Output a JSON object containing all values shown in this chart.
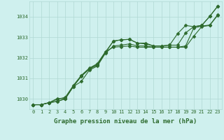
{
  "background_color": "#cff0ee",
  "plot_bg_color": "#cff0ee",
  "grid_color": "#b0d8d4",
  "line_color": "#2d6a2d",
  "marker_color": "#2d6a2d",
  "xlabel": "Graphe pression niveau de la mer (hPa)",
  "xlim": [
    -0.5,
    23.5
  ],
  "ylim": [
    1029.5,
    1034.75
  ],
  "yticks": [
    1030,
    1031,
    1032,
    1033,
    1034
  ],
  "xticks": [
    0,
    1,
    2,
    3,
    4,
    5,
    6,
    7,
    8,
    9,
    10,
    11,
    12,
    13,
    14,
    15,
    16,
    17,
    18,
    19,
    20,
    21,
    22,
    23
  ],
  "series": [
    [
      1029.72,
      1029.72,
      1029.82,
      1029.88,
      1030.0,
      1030.6,
      1031.1,
      1031.45,
      1031.65,
      1032.25,
      1032.82,
      1032.88,
      1032.9,
      1032.72,
      1032.72,
      1032.58,
      1032.58,
      1032.62,
      1032.62,
      1033.22,
      1033.52,
      1033.58,
      1034.02,
      1034.52
    ],
    [
      1029.72,
      1029.72,
      1029.82,
      1030.02,
      1030.02,
      1030.62,
      1031.12,
      1031.48,
      1031.68,
      1032.28,
      1032.82,
      1032.88,
      1032.9,
      1032.72,
      1032.68,
      1032.58,
      1032.58,
      1032.62,
      1033.18,
      1033.58,
      1033.52,
      1033.58,
      1034.02,
      1034.52
    ],
    [
      1029.72,
      1029.72,
      1029.82,
      1029.98,
      1030.08,
      1030.65,
      1031.15,
      1031.5,
      1031.72,
      1032.3,
      1032.52,
      1032.55,
      1032.58,
      1032.52,
      1032.52,
      1032.52,
      1032.52,
      1032.52,
      1032.52,
      1032.58,
      1033.45,
      1033.55,
      1033.6,
      1034.1
    ],
    [
      1029.72,
      1029.72,
      1029.82,
      1029.88,
      1030.02,
      1030.6,
      1030.85,
      1031.4,
      1031.6,
      1032.22,
      1032.58,
      1032.62,
      1032.68,
      1032.58,
      1032.58,
      1032.52,
      1032.52,
      1032.52,
      1032.52,
      1032.52,
      1033.05,
      1033.52,
      1033.58,
      1034.08
    ]
  ],
  "marker_size": 2.5,
  "line_width": 0.8,
  "tick_fontsize": 5.0,
  "label_fontsize": 6.5
}
